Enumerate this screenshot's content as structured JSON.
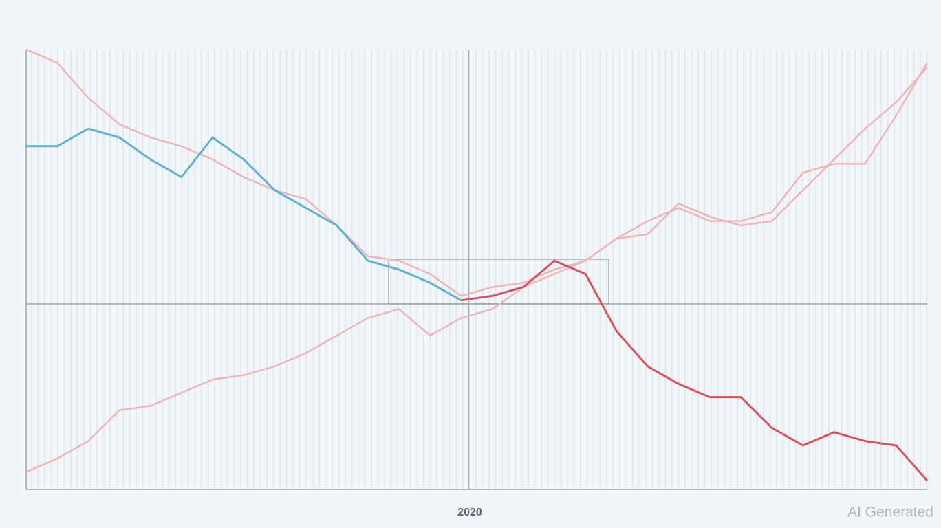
{
  "chart_data": {
    "type": "line",
    "x_label": "2020",
    "watermark": "AI Generated",
    "categories": [
      null,
      null,
      null,
      null,
      null,
      null,
      null,
      null,
      null,
      null,
      null,
      null,
      null,
      null,
      null,
      null,
      null,
      null,
      null,
      null,
      null,
      null,
      null,
      null,
      null,
      null,
      null,
      null,
      null,
      null
    ],
    "ylim": [
      0,
      100
    ],
    "series": [
      {
        "color": "#5bb4d4",
        "values": [
          78,
          78,
          82,
          80,
          75,
          71,
          80,
          75,
          68,
          64,
          60,
          52,
          50,
          47,
          43,
          null,
          null,
          null,
          null,
          null,
          null,
          null,
          null,
          null,
          null,
          null,
          null,
          null,
          null,
          null
        ]
      },
      {
        "color": "#d9535f",
        "values": [
          null,
          null,
          null,
          null,
          null,
          null,
          null,
          null,
          null,
          null,
          null,
          null,
          null,
          null,
          43,
          44,
          46,
          52,
          49,
          36,
          28,
          24,
          21,
          21,
          14,
          10,
          13,
          11,
          10,
          2
        ]
      },
      {
        "color": "#efb4b9",
        "values": [
          100,
          97,
          89,
          83,
          80,
          78,
          75,
          71,
          68,
          66,
          60,
          53,
          52,
          49,
          44,
          46,
          47,
          50,
          52,
          57,
          61,
          64,
          61,
          61,
          63,
          72,
          74,
          74,
          85,
          97
        ]
      },
      {
        "color": "#efb4b9",
        "values": [
          4,
          7,
          11,
          18,
          19,
          22,
          25,
          26,
          28,
          31,
          35,
          39,
          41,
          35,
          39,
          41,
          46,
          49,
          52,
          57,
          58,
          65,
          62,
          60,
          61,
          68,
          75,
          82,
          88,
          96
        ]
      }
    ]
  }
}
